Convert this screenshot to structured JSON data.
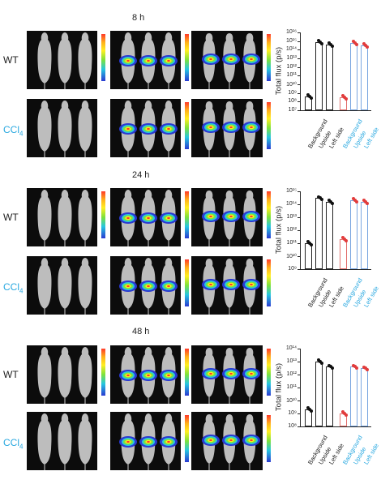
{
  "time_labels": [
    "8 h",
    "24 h",
    "48 h"
  ],
  "row_labels": {
    "wt": "WT",
    "ccl_main": "CCl",
    "ccl_sub": "4"
  },
  "charts": [
    {
      "ymin_exp": 7,
      "ymax_exp": 16,
      "ticks": [
        "10¹⁶",
        "10¹⁵",
        "10¹⁴",
        "10¹³",
        "10¹²",
        "10¹¹",
        "10¹⁰",
        "10⁹",
        "10⁸",
        "10⁷"
      ]
    },
    {
      "ymin_exp": 9,
      "ymax_exp": 15,
      "ticks": [
        "10¹⁵",
        "10¹⁴",
        "10¹³",
        "10¹²",
        "10¹¹",
        "10¹⁰",
        "10⁹"
      ]
    },
    {
      "ymin_exp": 8,
      "ymax_exp": 14,
      "ticks": [
        "10¹⁴",
        "10¹³",
        "10¹²",
        "10¹¹",
        "10¹⁰",
        "10⁹",
        "10⁸"
      ]
    }
  ],
  "chart_data": [
    {
      "type": "bar",
      "title": "",
      "ylabel": "Total flux (p/s)",
      "yscale": "log",
      "ylim": [
        10000000.0,
        1e+16
      ],
      "categories": [
        "Background",
        "Upside",
        "Left side",
        "Background",
        "Upside",
        "Left side"
      ],
      "series": [
        {
          "values": [
            400000000.0,
            800000000000000.0,
            400000000000000.0,
            300000000.0,
            600000000000000.0,
            300000000000000.0
          ]
        }
      ]
    },
    {
      "type": "bar",
      "title": "",
      "ylabel": "Total flux (p/s)",
      "yscale": "log",
      "ylim": [
        1000000000.0,
        1000000000000000.0
      ],
      "categories": [
        "Background",
        "Upside",
        "Left side",
        "Background",
        "Upside",
        "Left side"
      ],
      "series": [
        {
          "values": [
            100000000000.0,
            300000000000000.0,
            150000000000000.0,
            200000000000.0,
            200000000000000.0,
            150000000000000.0
          ]
        }
      ]
    },
    {
      "type": "bar",
      "title": "",
      "ylabel": "Total flux (p/s)",
      "yscale": "log",
      "ylim": [
        100000000.0,
        100000000000000.0
      ],
      "categories": [
        "Background",
        "Upside",
        "Left side",
        "Background",
        "Upside",
        "Left side"
      ],
      "series": [
        {
          "values": [
            2000000000.0,
            10000000000000.0,
            4000000000000.0,
            1000000000.0,
            4000000000000.0,
            3000000000000.0
          ]
        }
      ]
    }
  ],
  "ylabel": "Total flux (p/s)",
  "categories": [
    "Background",
    "Upside",
    "Left side",
    "Background",
    "Upside",
    "Left side"
  ],
  "colors": {
    "ccl_label": "#29a8e0",
    "bar_wt": "#222222",
    "bar_ccl_bg": "#e2716e",
    "bar_ccl": "#7aa6e0",
    "dot_ccl": "#e23c3c"
  }
}
